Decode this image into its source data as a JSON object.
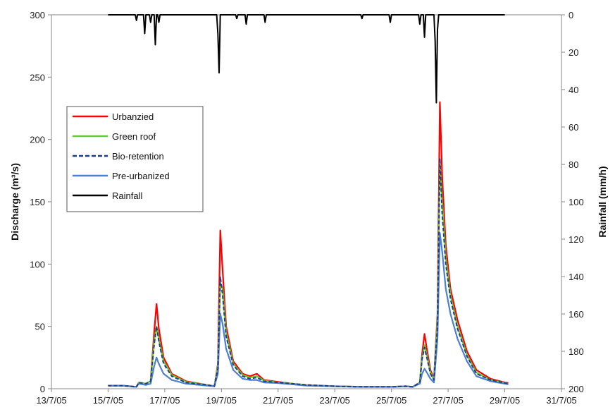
{
  "chart_data": {
    "type": "line",
    "title": "",
    "x_tick_labels": [
      "13/7/05",
      "15/7/05",
      "17/7/05",
      "19/7/05",
      "21/7/05",
      "23/7/05",
      "25/7/05",
      "27/7/05",
      "29/7/05",
      "31/7/05"
    ],
    "x_ticks": [
      "2005-07-13",
      "2005-07-15",
      "2005-07-17",
      "2005-07-19",
      "2005-07-21",
      "2005-07-23",
      "2005-07-25",
      "2005-07-27",
      "2005-07-29",
      "2005-07-31"
    ],
    "xlim": [
      "2005-07-13",
      "2005-07-31"
    ],
    "ylabel": "Discharge (m³/s)",
    "ylim": [
      0,
      300
    ],
    "y_ticks": [
      0,
      50,
      100,
      150,
      200,
      250,
      300
    ],
    "y2label": "Rainfall (mm/h)",
    "y2lim": [
      0,
      200
    ],
    "y2_inverted": true,
    "y2_ticks": [
      0,
      20,
      40,
      60,
      80,
      100,
      120,
      140,
      160,
      180,
      200
    ],
    "grid": "none",
    "legend_position": "left",
    "series": [
      {
        "name": "Urbanzied",
        "axis": "left",
        "color": "#ff0000",
        "dash": "solid",
        "points": [
          [
            "2005-07-15",
            2.5
          ],
          [
            "2005-07-15 12:00",
            2.5
          ],
          [
            "2005-07-16",
            1.5
          ],
          [
            "2005-07-16 02:00",
            5
          ],
          [
            "2005-07-16 08:00",
            4
          ],
          [
            "2005-07-16 12:00",
            6
          ],
          [
            "2005-07-16 15:00",
            45
          ],
          [
            "2005-07-16 17:00",
            68
          ],
          [
            "2005-07-16 19:00",
            48
          ],
          [
            "2005-07-16 23:00",
            25
          ],
          [
            "2005-07-17 06:00",
            12
          ],
          [
            "2005-07-17 18:00",
            6
          ],
          [
            "2005-07-18 12:00",
            3
          ],
          [
            "2005-07-18 18:00",
            2
          ],
          [
            "2005-07-18 21:00",
            20
          ],
          [
            "2005-07-18 23:00",
            127
          ],
          [
            "2005-07-19 01:00",
            95
          ],
          [
            "2005-07-19 04:00",
            50
          ],
          [
            "2005-07-19 10:00",
            22
          ],
          [
            "2005-07-19 18:00",
            12
          ],
          [
            "2005-07-20",
            10
          ],
          [
            "2005-07-20 06:00",
            12
          ],
          [
            "2005-07-20 12:00",
            7
          ],
          [
            "2005-07-21",
            5.5
          ],
          [
            "2005-07-21 12:00",
            4
          ],
          [
            "2005-07-22",
            3
          ],
          [
            "2005-07-23",
            2
          ],
          [
            "2005-07-24",
            1.5
          ],
          [
            "2005-07-25",
            1.5
          ],
          [
            "2005-07-25 12:00",
            2
          ],
          [
            "2005-07-25 18:00",
            1.5
          ],
          [
            "2005-07-26",
            5
          ],
          [
            "2005-07-26 02:00",
            28
          ],
          [
            "2005-07-26 04:00",
            44
          ],
          [
            "2005-07-26 06:00",
            32
          ],
          [
            "2005-07-26 09:00",
            15
          ],
          [
            "2005-07-26 12:00",
            8
          ],
          [
            "2005-07-26 15:00",
            60
          ],
          [
            "2005-07-26 17:00",
            230
          ],
          [
            "2005-07-26 19:00",
            170
          ],
          [
            "2005-07-26 22:00",
            115
          ],
          [
            "2005-07-27 02:00",
            80
          ],
          [
            "2005-07-27 08:00",
            55
          ],
          [
            "2005-07-27 16:00",
            30
          ],
          [
            "2005-07-28",
            15
          ],
          [
            "2005-07-28 12:00",
            8
          ],
          [
            "2005-07-29",
            5
          ],
          [
            "2005-07-29 03:00",
            4.5
          ]
        ]
      },
      {
        "name": "Green roof",
        "axis": "left",
        "color": "#66cc33",
        "dash": "solid",
        "points": [
          [
            "2005-07-15",
            2.5
          ],
          [
            "2005-07-15 12:00",
            2.5
          ],
          [
            "2005-07-16",
            1.5
          ],
          [
            "2005-07-16 02:00",
            5
          ],
          [
            "2005-07-16 08:00",
            4
          ],
          [
            "2005-07-16 12:00",
            6
          ],
          [
            "2005-07-16 15:00",
            38
          ],
          [
            "2005-07-16 17:00",
            50
          ],
          [
            "2005-07-16 19:00",
            40
          ],
          [
            "2005-07-16 23:00",
            22
          ],
          [
            "2005-07-17 06:00",
            11
          ],
          [
            "2005-07-17 18:00",
            5.5
          ],
          [
            "2005-07-18 12:00",
            3
          ],
          [
            "2005-07-18 18:00",
            2
          ],
          [
            "2005-07-18 21:00",
            18
          ],
          [
            "2005-07-18 23:00",
            85
          ],
          [
            "2005-07-19 01:00",
            80
          ],
          [
            "2005-07-19 04:00",
            45
          ],
          [
            "2005-07-19 10:00",
            20
          ],
          [
            "2005-07-19 18:00",
            11
          ],
          [
            "2005-07-20",
            9
          ],
          [
            "2005-07-20 06:00",
            10
          ],
          [
            "2005-07-20 12:00",
            6.5
          ],
          [
            "2005-07-21",
            5
          ],
          [
            "2005-07-21 12:00",
            4
          ],
          [
            "2005-07-22",
            3
          ],
          [
            "2005-07-23",
            2
          ],
          [
            "2005-07-24",
            1.5
          ],
          [
            "2005-07-25",
            1.5
          ],
          [
            "2005-07-25 12:00",
            2
          ],
          [
            "2005-07-25 18:00",
            1.5
          ],
          [
            "2005-07-26",
            5
          ],
          [
            "2005-07-26 02:00",
            25
          ],
          [
            "2005-07-26 04:00",
            35
          ],
          [
            "2005-07-26 06:00",
            27
          ],
          [
            "2005-07-26 09:00",
            13
          ],
          [
            "2005-07-26 12:00",
            7
          ],
          [
            "2005-07-26 15:00",
            55
          ],
          [
            "2005-07-26 17:00",
            182
          ],
          [
            "2005-07-26 19:00",
            150
          ],
          [
            "2005-07-26 22:00",
            105
          ],
          [
            "2005-07-27 02:00",
            75
          ],
          [
            "2005-07-27 08:00",
            50
          ],
          [
            "2005-07-27 16:00",
            27
          ],
          [
            "2005-07-28",
            13
          ],
          [
            "2005-07-28 12:00",
            7
          ],
          [
            "2005-07-29",
            4.5
          ],
          [
            "2005-07-29 03:00",
            4
          ]
        ]
      },
      {
        "name": "Bio-retention",
        "axis": "left",
        "color": "#1f3d8a",
        "dash": "dashed",
        "points": [
          [
            "2005-07-15",
            2.5
          ],
          [
            "2005-07-15 12:00",
            2.5
          ],
          [
            "2005-07-16",
            1.5
          ],
          [
            "2005-07-16 02:00",
            5
          ],
          [
            "2005-07-16 08:00",
            4
          ],
          [
            "2005-07-16 12:00",
            6
          ],
          [
            "2005-07-16 15:00",
            35
          ],
          [
            "2005-07-16 17:00",
            50
          ],
          [
            "2005-07-16 19:00",
            38
          ],
          [
            "2005-07-16 23:00",
            20
          ],
          [
            "2005-07-17 06:00",
            10
          ],
          [
            "2005-07-17 18:00",
            5
          ],
          [
            "2005-07-18 12:00",
            3
          ],
          [
            "2005-07-18 18:00",
            2
          ],
          [
            "2005-07-18 21:00",
            16
          ],
          [
            "2005-07-18 23:00",
            90
          ],
          [
            "2005-07-19 01:00",
            75
          ],
          [
            "2005-07-19 04:00",
            42
          ],
          [
            "2005-07-19 10:00",
            19
          ],
          [
            "2005-07-19 18:00",
            10
          ],
          [
            "2005-07-20",
            8
          ],
          [
            "2005-07-20 06:00",
            9
          ],
          [
            "2005-07-20 12:00",
            6
          ],
          [
            "2005-07-21",
            5
          ],
          [
            "2005-07-21 12:00",
            4
          ],
          [
            "2005-07-22",
            3
          ],
          [
            "2005-07-23",
            2
          ],
          [
            "2005-07-24",
            1.5
          ],
          [
            "2005-07-25",
            1.5
          ],
          [
            "2005-07-25 12:00",
            2
          ],
          [
            "2005-07-25 18:00",
            1.5
          ],
          [
            "2005-07-26",
            5
          ],
          [
            "2005-07-26 02:00",
            24
          ],
          [
            "2005-07-26 04:00",
            33
          ],
          [
            "2005-07-26 06:00",
            25
          ],
          [
            "2005-07-26 09:00",
            12
          ],
          [
            "2005-07-26 12:00",
            7
          ],
          [
            "2005-07-26 15:00",
            50
          ],
          [
            "2005-07-26 17:00",
            185
          ],
          [
            "2005-07-26 19:00",
            140
          ],
          [
            "2005-07-26 22:00",
            100
          ],
          [
            "2005-07-27 02:00",
            72
          ],
          [
            "2005-07-27 08:00",
            48
          ],
          [
            "2005-07-27 16:00",
            26
          ],
          [
            "2005-07-28",
            12
          ],
          [
            "2005-07-28 12:00",
            7
          ],
          [
            "2005-07-29",
            4.5
          ],
          [
            "2005-07-29 03:00",
            4
          ]
        ]
      },
      {
        "name": "Pre-urbanized",
        "axis": "left",
        "color": "#4f7fd0",
        "dash": "solid",
        "points": [
          [
            "2005-07-15",
            2.5
          ],
          [
            "2005-07-15 12:00",
            2.5
          ],
          [
            "2005-07-16",
            1.5
          ],
          [
            "2005-07-16 02:00",
            4
          ],
          [
            "2005-07-16 08:00",
            3
          ],
          [
            "2005-07-16 12:00",
            4
          ],
          [
            "2005-07-16 15:00",
            18
          ],
          [
            "2005-07-16 17:00",
            25
          ],
          [
            "2005-07-16 19:00",
            20
          ],
          [
            "2005-07-16 23:00",
            12
          ],
          [
            "2005-07-17 06:00",
            7
          ],
          [
            "2005-07-17 18:00",
            4
          ],
          [
            "2005-07-18 12:00",
            2.5
          ],
          [
            "2005-07-18 18:00",
            2
          ],
          [
            "2005-07-18 21:00",
            12
          ],
          [
            "2005-07-18 23:00",
            60
          ],
          [
            "2005-07-19 01:00",
            52
          ],
          [
            "2005-07-19 04:00",
            32
          ],
          [
            "2005-07-19 10:00",
            15
          ],
          [
            "2005-07-19 18:00",
            8
          ],
          [
            "2005-07-20",
            7
          ],
          [
            "2005-07-20 06:00",
            7
          ],
          [
            "2005-07-20 12:00",
            5
          ],
          [
            "2005-07-21",
            4.5
          ],
          [
            "2005-07-21 12:00",
            3.5
          ],
          [
            "2005-07-22",
            2.5
          ],
          [
            "2005-07-23",
            2
          ],
          [
            "2005-07-24",
            1.5
          ],
          [
            "2005-07-25",
            1.5
          ],
          [
            "2005-07-25 12:00",
            2
          ],
          [
            "2005-07-25 18:00",
            1.5
          ],
          [
            "2005-07-26",
            4
          ],
          [
            "2005-07-26 02:00",
            12
          ],
          [
            "2005-07-26 04:00",
            16
          ],
          [
            "2005-07-26 06:00",
            13
          ],
          [
            "2005-07-26 09:00",
            8
          ],
          [
            "2005-07-26 12:00",
            5
          ],
          [
            "2005-07-26 15:00",
            40
          ],
          [
            "2005-07-26 17:00",
            125
          ],
          [
            "2005-07-26 19:00",
            110
          ],
          [
            "2005-07-26 22:00",
            80
          ],
          [
            "2005-07-27 02:00",
            60
          ],
          [
            "2005-07-27 08:00",
            40
          ],
          [
            "2005-07-27 16:00",
            22
          ],
          [
            "2005-07-28",
            10
          ],
          [
            "2005-07-28 12:00",
            6
          ],
          [
            "2005-07-29",
            4
          ],
          [
            "2005-07-29 03:00",
            3.5
          ]
        ]
      },
      {
        "name": "Rainfall",
        "axis": "right",
        "color": "#000000",
        "dash": "solid",
        "points": [
          [
            "2005-07-15",
            0
          ],
          [
            "2005-07-15 23:00",
            0
          ],
          [
            "2005-07-16",
            3
          ],
          [
            "2005-07-16 01:00",
            0
          ],
          [
            "2005-07-16 06:00",
            0
          ],
          [
            "2005-07-16 07:00",
            10
          ],
          [
            "2005-07-16 08:00",
            0
          ],
          [
            "2005-07-16 11:00",
            0
          ],
          [
            "2005-07-16 12:00",
            4
          ],
          [
            "2005-07-16 13:00",
            0
          ],
          [
            "2005-07-16 15:00",
            0
          ],
          [
            "2005-07-16 16:00",
            16
          ],
          [
            "2005-07-16 17:00",
            0
          ],
          [
            "2005-07-16 18:00",
            0
          ],
          [
            "2005-07-16 19:00",
            4
          ],
          [
            "2005-07-16 20:00",
            0
          ],
          [
            "2005-07-18 20:00",
            0
          ],
          [
            "2005-07-18 21:00",
            10
          ],
          [
            "2005-07-18 22:00",
            31
          ],
          [
            "2005-07-18 23:00",
            0
          ],
          [
            "2005-07-19 12:00",
            0
          ],
          [
            "2005-07-19 13:00",
            2
          ],
          [
            "2005-07-19 14:00",
            0
          ],
          [
            "2005-07-19 20:00",
            0
          ],
          [
            "2005-07-19 21:00",
            5
          ],
          [
            "2005-07-19 22:00",
            0
          ],
          [
            "2005-07-20 12:00",
            0
          ],
          [
            "2005-07-20 13:00",
            4
          ],
          [
            "2005-07-20 14:00",
            0
          ],
          [
            "2005-07-23 22:00",
            0
          ],
          [
            "2005-07-23 23:00",
            2
          ],
          [
            "2005-07-24",
            0
          ],
          [
            "2005-07-24 22:00",
            0
          ],
          [
            "2005-07-24 23:00",
            4
          ],
          [
            "2005-07-25",
            0
          ],
          [
            "2005-07-25 23:00",
            0
          ],
          [
            "2005-07-26",
            5
          ],
          [
            "2005-07-26 01:00",
            0
          ],
          [
            "2005-07-26 03:00",
            0
          ],
          [
            "2005-07-26 04:00",
            12
          ],
          [
            "2005-07-26 05:00",
            0
          ],
          [
            "2005-07-26 12:00",
            0
          ],
          [
            "2005-07-26 13:00",
            14
          ],
          [
            "2005-07-26 14:00",
            47
          ],
          [
            "2005-07-26 15:00",
            8
          ],
          [
            "2005-07-26 16:00",
            0
          ],
          [
            "2005-07-29",
            0
          ]
        ]
      }
    ]
  }
}
